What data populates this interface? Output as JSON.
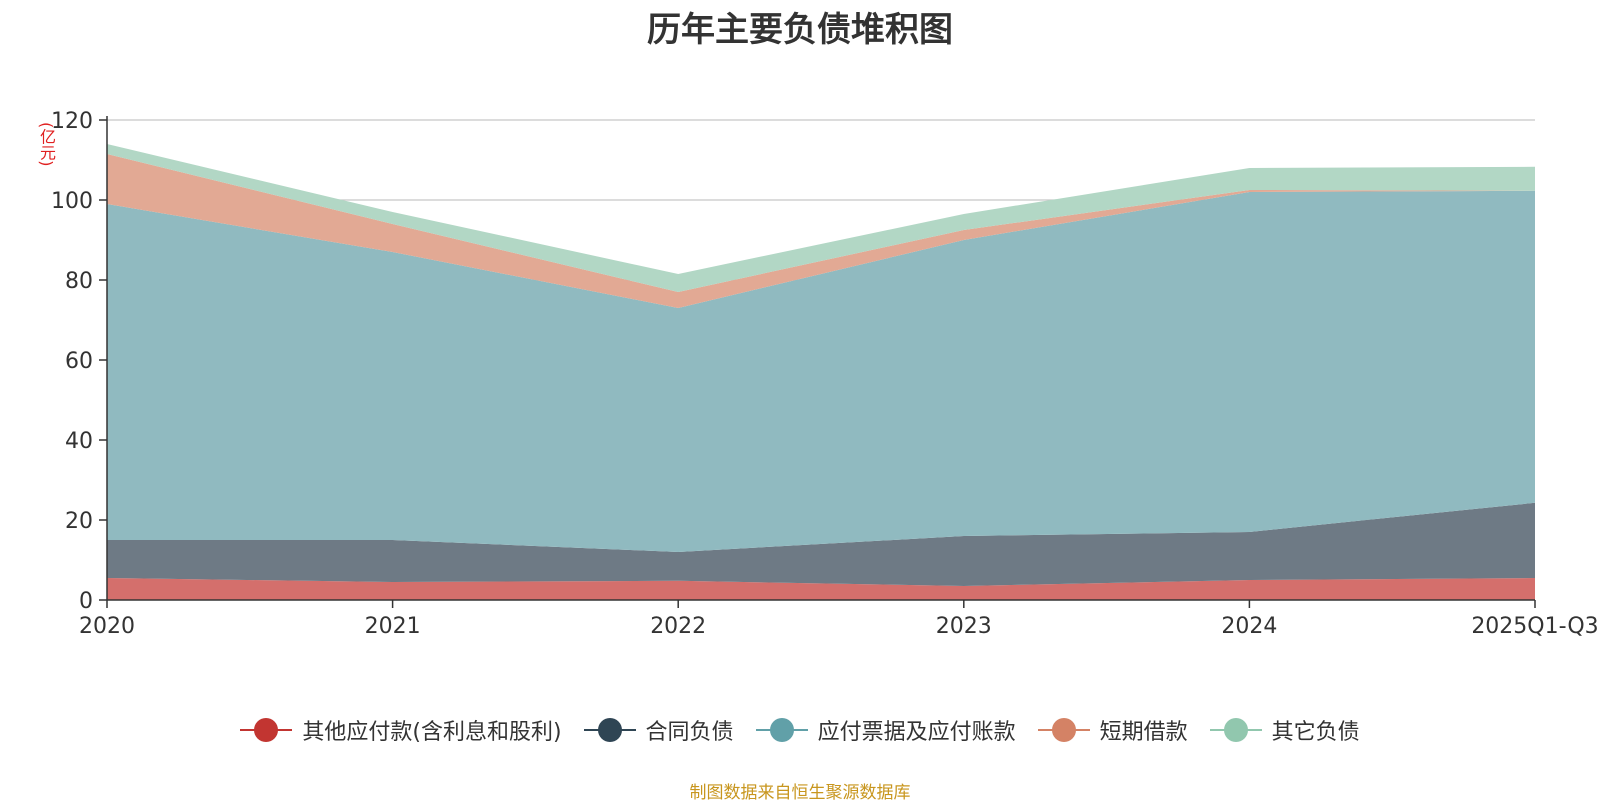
{
  "chart_data": {
    "type": "area",
    "stacked": true,
    "title": "历年主要负债堆积图",
    "ylabel": "(亿元)",
    "categories": [
      "2020",
      "2021",
      "2022",
      "2023",
      "2024",
      "2025Q1-Q3"
    ],
    "ylim": [
      0,
      120
    ],
    "yticks": [
      0,
      20,
      40,
      60,
      80,
      100,
      120
    ],
    "grid": true,
    "legend_position": "bottom",
    "series": [
      {
        "name": "其他应付款(含利息和股利)",
        "color": "#c23531",
        "fill": "#d46f6c",
        "values": [
          5.5,
          4.5,
          4.8,
          3.5,
          5.0,
          5.5
        ]
      },
      {
        "name": "合同负债",
        "color": "#2f4554",
        "fill": "#6e7a85",
        "values": [
          9.5,
          10.5,
          7.2,
          12.5,
          12.0,
          18.8
        ]
      },
      {
        "name": "应付票据及应付账款",
        "color": "#61a0a8",
        "fill": "#90bac0",
        "values": [
          84.0,
          72.0,
          61.0,
          74.0,
          85.0,
          78.0
        ]
      },
      {
        "name": "短期借款",
        "color": "#d48265",
        "fill": "#e2a994",
        "values": [
          12.5,
          7.0,
          4.0,
          2.5,
          0.5,
          0.0
        ]
      },
      {
        "name": "其它负债",
        "color": "#91c7ae",
        "fill": "#b2d7c5",
        "values": [
          2.5,
          3.0,
          4.5,
          4.0,
          5.5,
          6.0
        ]
      }
    ]
  },
  "footer": {
    "source": "制图数据来自恒生聚源数据库"
  }
}
